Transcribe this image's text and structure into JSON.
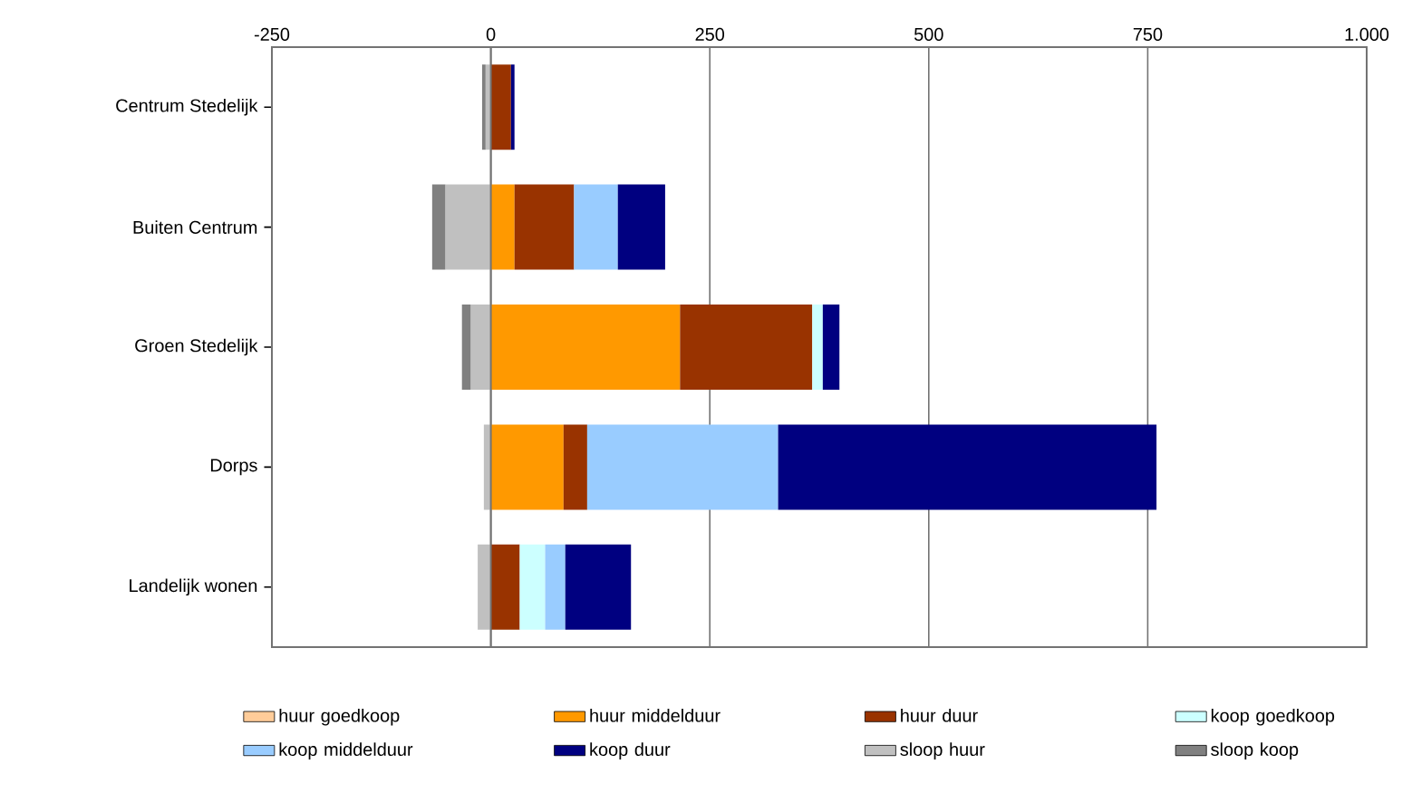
{
  "chart_data": {
    "type": "bar",
    "orientation": "horizontal",
    "stacked": true,
    "categories": [
      "Centrum Stedelijk",
      "Buiten Centrum",
      "Groen Stedelijk",
      "Dorps",
      "Landelijk wonen"
    ],
    "series": [
      {
        "name": "huur goedkoop",
        "color": "#ffcc99",
        "values": [
          0,
          0,
          0,
          0,
          0
        ]
      },
      {
        "name": "huur middelduur",
        "color": "#ff9900",
        "values": [
          0,
          27,
          216,
          83,
          0
        ]
      },
      {
        "name": "huur duur",
        "color": "#993300",
        "values": [
          23,
          68,
          151,
          27,
          33
        ]
      },
      {
        "name": "koop goedkoop",
        "color": "#ccffff",
        "values": [
          0,
          0,
          12,
          0,
          29
        ]
      },
      {
        "name": "koop middelduur",
        "color": "#99ccff",
        "values": [
          0,
          50,
          0,
          218,
          23
        ]
      },
      {
        "name": "koop duur",
        "color": "#000080",
        "values": [
          4,
          54,
          19,
          432,
          75
        ]
      },
      {
        "name": "sloop huur",
        "color": "#c0c0c0",
        "values": [
          -6,
          -52,
          -23,
          -8,
          -15
        ]
      },
      {
        "name": "sloop koop",
        "color": "#808080",
        "values": [
          -4,
          -15,
          -10,
          0,
          0
        ]
      }
    ],
    "xlim": [
      -250,
      1000
    ],
    "xticks": [
      -250,
      0,
      250,
      500,
      750,
      {
        "value": 1000,
        "label": "1.000"
      }
    ],
    "grid": "x",
    "legend": "bottom"
  }
}
